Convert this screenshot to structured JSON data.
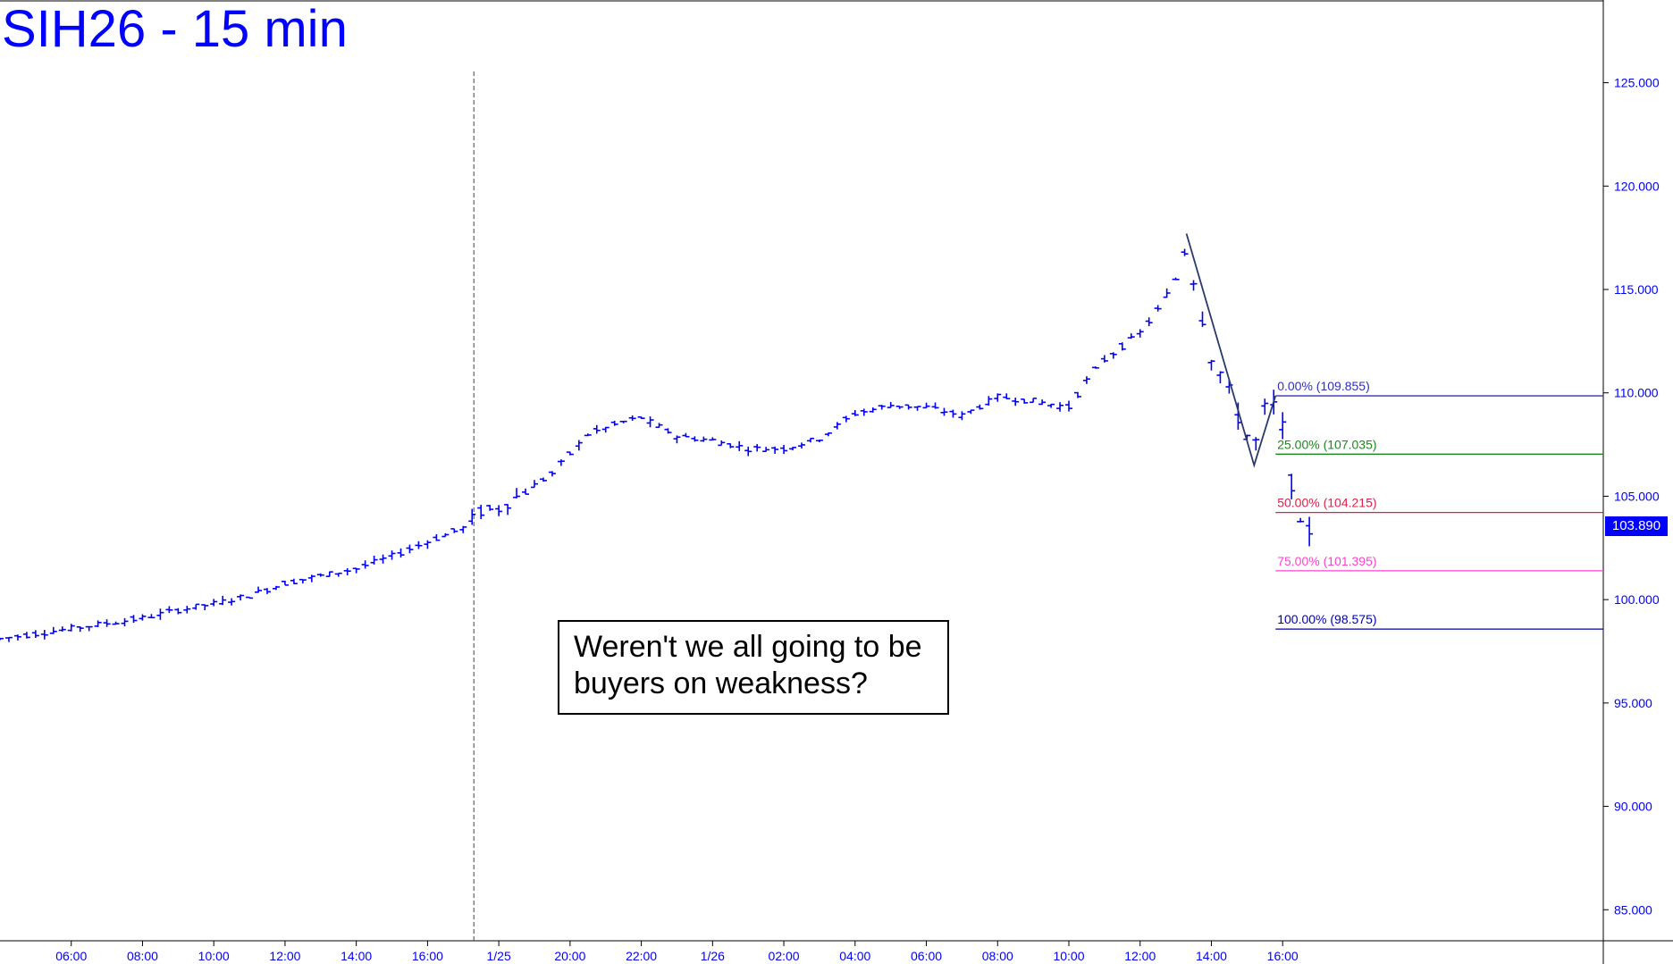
{
  "chart_data": {
    "type": "bar",
    "title": "SIH26 - 15 min",
    "annotation": "Weren't we all going to be buyers on weakness?",
    "last_price": "103.890",
    "ylim": [
      83.5,
      129
    ],
    "y_ticks": [
      "85.000",
      "90.000",
      "95.000",
      "100.000",
      "105.000",
      "110.000",
      "115.000",
      "120.000",
      "125.000"
    ],
    "y_tick_values": [
      85,
      90,
      95,
      100,
      105,
      110,
      115,
      120,
      125
    ],
    "x_ticks": [
      "06:00",
      "08:00",
      "10:00",
      "12:00",
      "14:00",
      "16:00",
      "1/25",
      "20:00",
      "22:00",
      "1/26",
      "02:00",
      "04:00",
      "06:00",
      "08:00",
      "10:00",
      "12:00",
      "14:00",
      "16:00"
    ],
    "x_tick_hours": [
      6,
      8,
      10,
      12,
      14,
      16,
      18,
      20,
      22,
      24,
      26,
      28,
      30,
      32,
      34,
      36,
      38,
      40
    ],
    "x_range_hours": [
      4,
      49
    ],
    "session_break_hour": 17.3,
    "fib_levels": [
      {
        "label": "0.00% (109.855)",
        "value": 109.855,
        "color": "#3030c0"
      },
      {
        "label": "25.00% (107.035)",
        "value": 107.035,
        "color": "#1a8a1a"
      },
      {
        "label": "50.00% (104.215)",
        "value": 104.215,
        "color": "#e0204a"
      },
      {
        "label": "75.00% (101.395)",
        "value": 101.395,
        "color": "#ff40d0"
      },
      {
        "label": "100.00% (98.575)",
        "value": 98.575,
        "color": "#0000b0"
      }
    ],
    "fib_start_hour": 39.8,
    "swing_line": [
      [
        37.3,
        117.7
      ],
      [
        39.2,
        106.5
      ],
      [
        39.8,
        109.855
      ]
    ],
    "price_anchors": [
      [
        4.0,
        98.1
      ],
      [
        6.0,
        98.6
      ],
      [
        8.0,
        99.1
      ],
      [
        9.0,
        99.5
      ],
      [
        10.0,
        99.8
      ],
      [
        11.0,
        100.2
      ],
      [
        12.0,
        100.8
      ],
      [
        14.0,
        101.5
      ],
      [
        15.0,
        102.1
      ],
      [
        16.0,
        102.8
      ],
      [
        17.2,
        103.6
      ],
      [
        17.3,
        104.2
      ],
      [
        18.0,
        104.4
      ],
      [
        19.5,
        106.1
      ],
      [
        20.5,
        108.0
      ],
      [
        21.5,
        108.6
      ],
      [
        22.0,
        108.8
      ],
      [
        23.0,
        107.9
      ],
      [
        24.0,
        107.7
      ],
      [
        25.0,
        107.3
      ],
      [
        26.0,
        107.3
      ],
      [
        27.0,
        107.8
      ],
      [
        28.0,
        109.0
      ],
      [
        29.0,
        109.4
      ],
      [
        30.0,
        109.3
      ],
      [
        31.0,
        108.9
      ],
      [
        32.0,
        109.8
      ],
      [
        33.0,
        109.6
      ],
      [
        34.0,
        109.3
      ],
      [
        34.5,
        110.6
      ],
      [
        35.0,
        111.6
      ],
      [
        36.0,
        112.9
      ],
      [
        36.5,
        114.0
      ],
      [
        37.0,
        115.5
      ],
      [
        37.3,
        117.2
      ],
      [
        37.6,
        114.7
      ],
      [
        38.0,
        111.8
      ],
      [
        38.4,
        110.5
      ],
      [
        38.8,
        108.6
      ],
      [
        39.2,
        107.3
      ],
      [
        39.5,
        109.2
      ],
      [
        39.8,
        109.4
      ],
      [
        40.0,
        108.3
      ],
      [
        40.2,
        106.2
      ],
      [
        40.4,
        104.0
      ],
      [
        40.6,
        102.8
      ],
      [
        40.9,
        103.9
      ]
    ]
  }
}
